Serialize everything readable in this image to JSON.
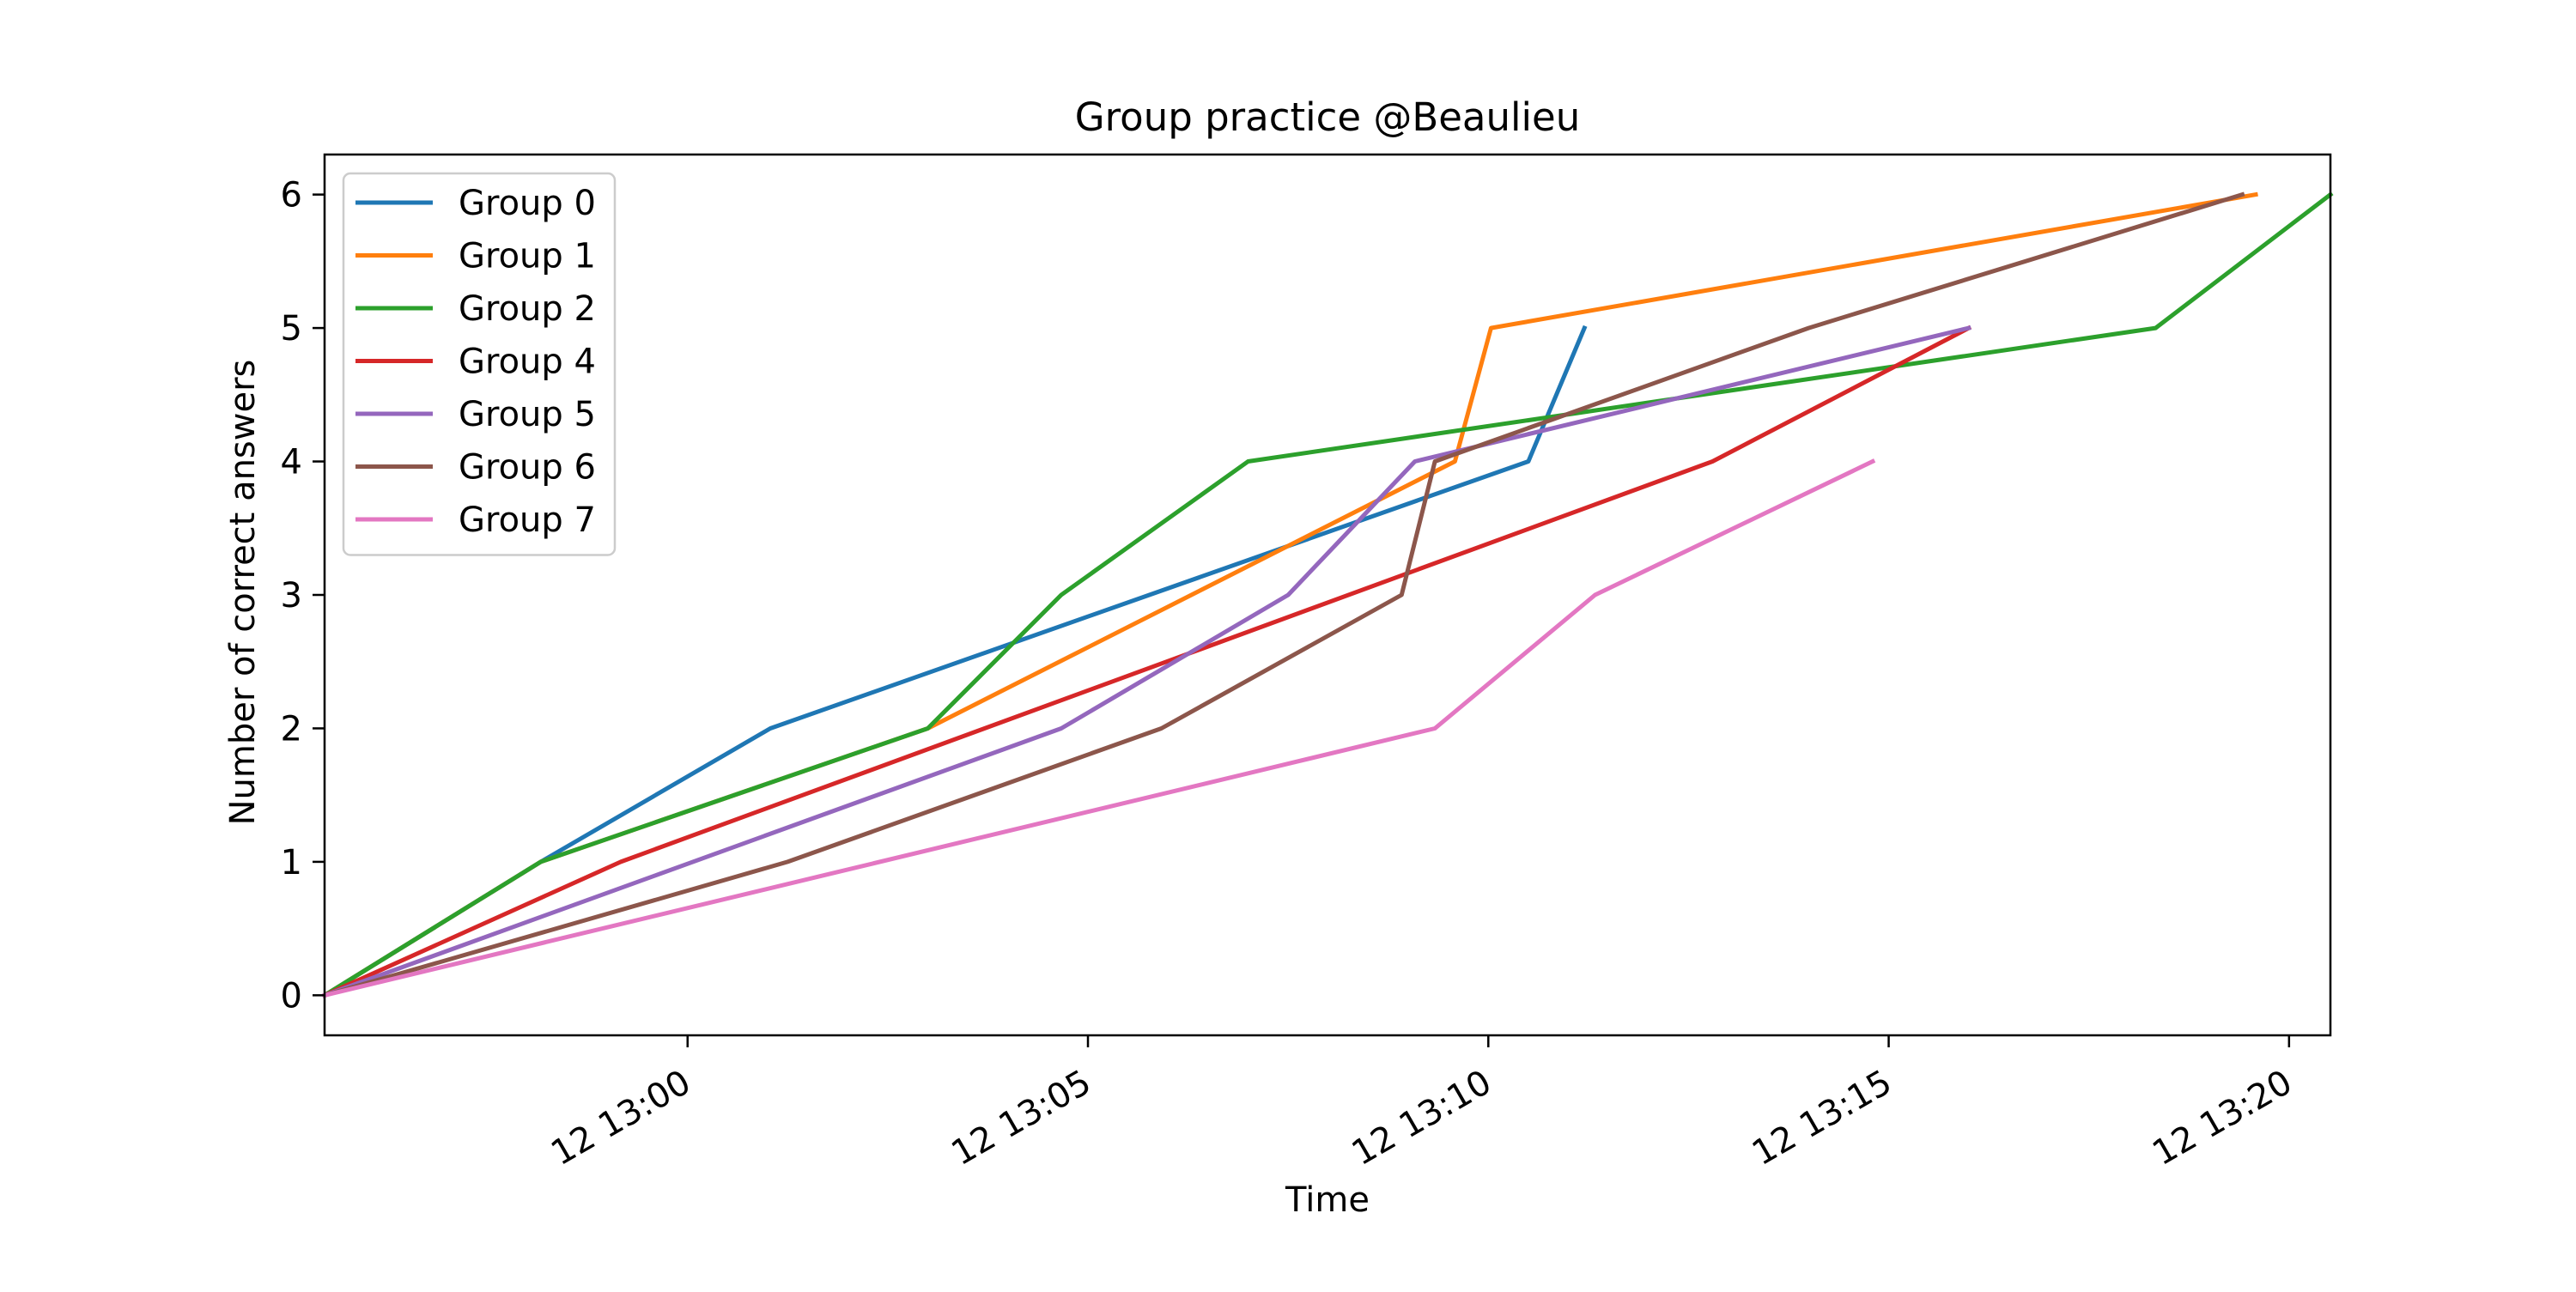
{
  "chart_data": {
    "type": "line",
    "title": "Group practice @Beaulieu",
    "xlabel": "Time",
    "ylabel": "Number of correct answers",
    "xlim": [
      "12:55:28",
      "13:20:31"
    ],
    "ylim": [
      -0.3,
      6.3
    ],
    "xticks": [
      {
        "value": "13:00:00",
        "label": "12 13:00"
      },
      {
        "value": "13:05:00",
        "label": "12 13:05"
      },
      {
        "value": "13:10:00",
        "label": "12 13:10"
      },
      {
        "value": "13:15:00",
        "label": "12 13:15"
      },
      {
        "value": "13:20:00",
        "label": "12 13:20"
      }
    ],
    "yticks": [
      0,
      1,
      2,
      3,
      4,
      5,
      6
    ],
    "grid": false,
    "legend": "top-left",
    "series": [
      {
        "name": "Group 0",
        "color": "#1f77b4",
        "points": [
          [
            "12:55:28",
            0
          ],
          [
            "12:58:10",
            1
          ],
          [
            "13:01:02",
            2
          ],
          [
            "13:10:30",
            4
          ],
          [
            "13:11:12",
            5
          ]
        ]
      },
      {
        "name": "Group 1",
        "color": "#ff7f0e",
        "points": [
          [
            "12:55:28",
            0
          ],
          [
            "12:58:10",
            1
          ],
          [
            "13:03:00",
            2
          ],
          [
            "13:09:35",
            4
          ],
          [
            "13:10:02",
            5
          ],
          [
            "13:19:35",
            6
          ]
        ]
      },
      {
        "name": "Group 2",
        "color": "#2ca02c",
        "points": [
          [
            "12:55:28",
            0
          ],
          [
            "12:58:10",
            1
          ],
          [
            "13:03:00",
            2
          ],
          [
            "13:04:40",
            3
          ],
          [
            "13:07:00",
            4
          ],
          [
            "13:18:20",
            5
          ],
          [
            "13:20:31",
            6
          ]
        ]
      },
      {
        "name": "Group 4",
        "color": "#d62728",
        "points": [
          [
            "12:55:28",
            0
          ],
          [
            "12:59:10",
            1
          ],
          [
            "13:12:48",
            4
          ],
          [
            "13:16:00",
            5
          ]
        ]
      },
      {
        "name": "Group 5",
        "color": "#9467bd",
        "points": [
          [
            "12:55:28",
            0
          ],
          [
            "13:04:40",
            2
          ],
          [
            "13:07:30",
            3
          ],
          [
            "13:09:05",
            4
          ],
          [
            "13:16:00",
            5
          ]
        ]
      },
      {
        "name": "Group 6",
        "color": "#8c564b",
        "points": [
          [
            "12:55:28",
            0
          ],
          [
            "13:01:15",
            1
          ],
          [
            "13:05:55",
            2
          ],
          [
            "13:08:55",
            3
          ],
          [
            "13:09:20",
            4
          ],
          [
            "13:14:00",
            5
          ],
          [
            "13:19:25",
            6
          ]
        ]
      },
      {
        "name": "Group 7",
        "color": "#e377c2",
        "points": [
          [
            "12:55:28",
            0
          ],
          [
            "13:09:20",
            2
          ],
          [
            "13:11:20",
            3
          ],
          [
            "13:14:48",
            4
          ]
        ]
      }
    ]
  }
}
